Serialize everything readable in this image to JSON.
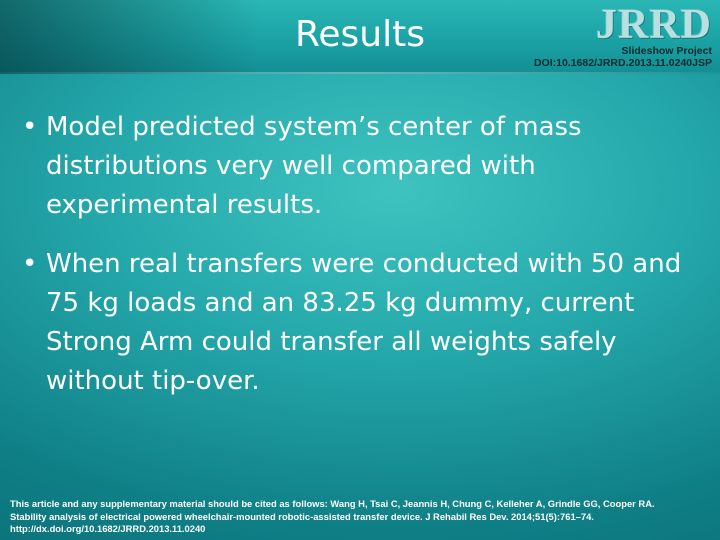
{
  "slide": {
    "title": "Results",
    "logo_text": "JRRD",
    "project_line1": "Slideshow Project",
    "project_line2": "DOI:10.1682/JRRD.2013.11.0240JSP",
    "bullets": [
      "Model predicted system’s center of mass distributions very well compared with experimental results.",
      "When real transfers were conducted with 50 and 75 kg loads and an 83.25 kg dummy, current Strong Arm could transfer all weights safely without tip-over."
    ],
    "bullet_marker": "•",
    "citation_line1": "This article and any supplementary material should be cited as follows: Wang H, Tsai C, Jeannis H, Chung C, Kelleher A, Grindle GG, Cooper RA.",
    "citation_line2": "Stability analysis of electrical powered wheelchair-mounted robotic-assisted transfer device. J Rehabil Res Dev. 2014;51(5):761–74.",
    "citation_line3": "http://dx.doi.org/10.1682/JRRD.2013.11.0240"
  },
  "colors": {
    "background": "#24a7aa",
    "header": "#1aa0a3",
    "text": "#ffffff",
    "project_text": "#0a2a2d"
  }
}
